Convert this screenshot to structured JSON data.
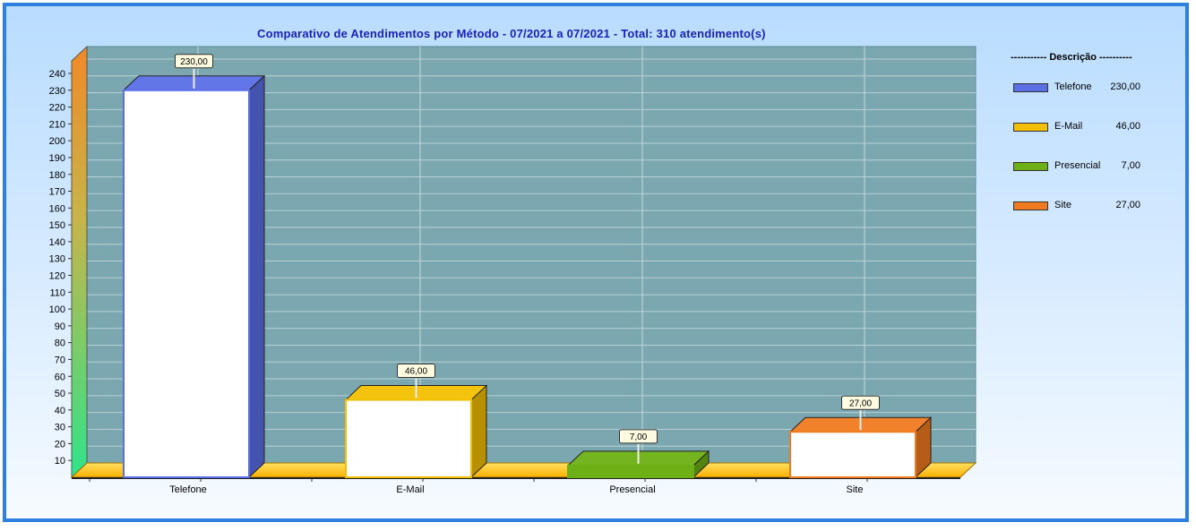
{
  "chart_data": {
    "type": "bar",
    "title": "Comparativo de Atendimentos por Método - 07/2021 a 07/2021 - Total: 310 atendimento(s)",
    "categories": [
      "Telefone",
      "E-Mail",
      "Presencial",
      "Site"
    ],
    "values": [
      230,
      46,
      7,
      27
    ],
    "value_labels": [
      "230,00",
      "46,00",
      "7,00",
      "27,00"
    ],
    "ylim": [
      0,
      240
    ],
    "yticks": [
      10,
      20,
      30,
      40,
      50,
      60,
      70,
      80,
      90,
      100,
      110,
      120,
      130,
      140,
      150,
      160,
      170,
      180,
      190,
      200,
      210,
      220,
      230,
      240
    ],
    "grid": true,
    "legend_position": "right",
    "legend_title": "----------- Descrição ----------",
    "colors": [
      "#5a6fe6",
      "#f2c000",
      "#6db015",
      "#f07a20"
    ]
  }
}
